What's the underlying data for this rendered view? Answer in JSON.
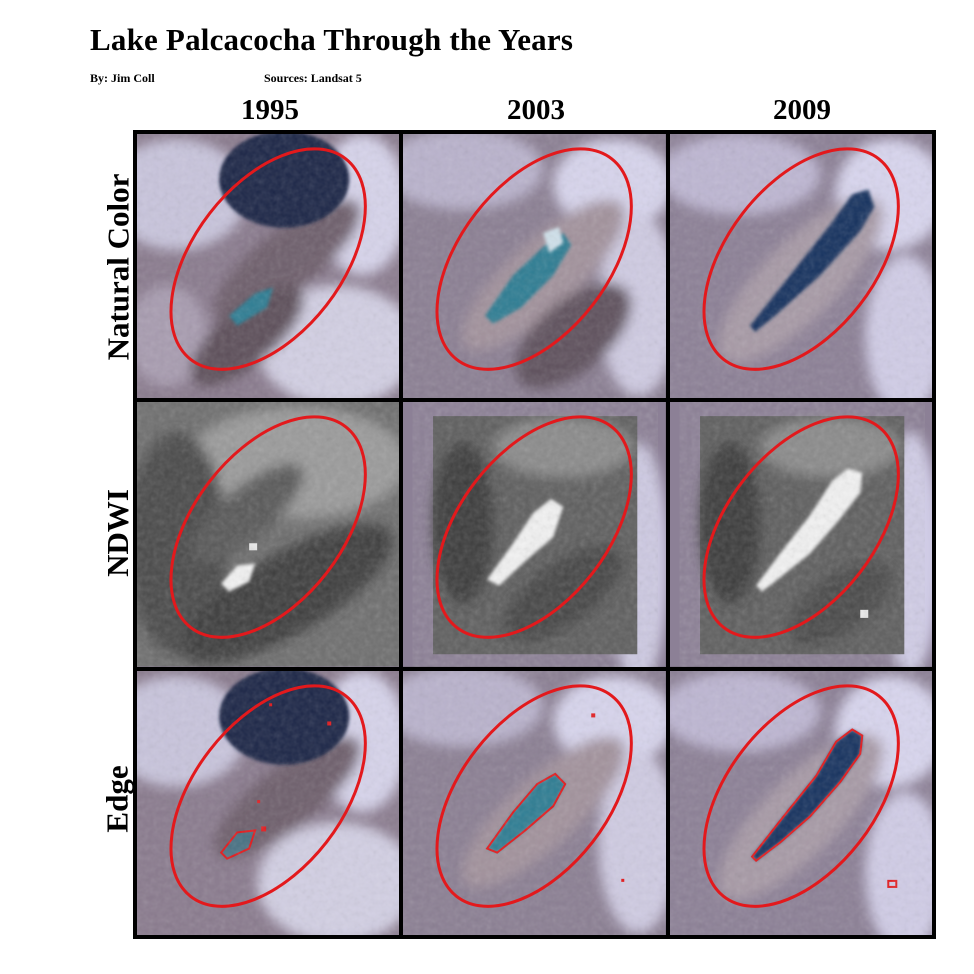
{
  "title": "Lake Palcacocha Through the Years",
  "author": "By: Jim Coll",
  "sources": "Sources: Landsat 5",
  "years": [
    "1995",
    "2003",
    "2009"
  ],
  "rows": [
    "Natural Color",
    "NDWI",
    "Edge"
  ],
  "colors": {
    "highlight_ellipse": "#e3191c",
    "edge_outline": "#e3191c",
    "frame": "#000000",
    "lake_turquoise": "#2f7d93",
    "lake_deep": "#16335e",
    "ndwi_water": "#f2f2f2"
  },
  "panels": [
    {
      "row": "Natural Color",
      "year": "1995",
      "lake": "small-turquoise"
    },
    {
      "row": "Natural Color",
      "year": "2003",
      "lake": "medium-turquoise"
    },
    {
      "row": "Natural Color",
      "year": "2009",
      "lake": "large-deep-blue"
    },
    {
      "row": "NDWI",
      "year": "1995",
      "lake": "small-bright"
    },
    {
      "row": "NDWI",
      "year": "2003",
      "lake": "medium-bright"
    },
    {
      "row": "NDWI",
      "year": "2009",
      "lake": "large-bright"
    },
    {
      "row": "Edge",
      "year": "1995",
      "lake": "small-outlined"
    },
    {
      "row": "Edge",
      "year": "2003",
      "lake": "medium-outlined"
    },
    {
      "row": "Edge",
      "year": "2009",
      "lake": "large-outlined"
    }
  ]
}
